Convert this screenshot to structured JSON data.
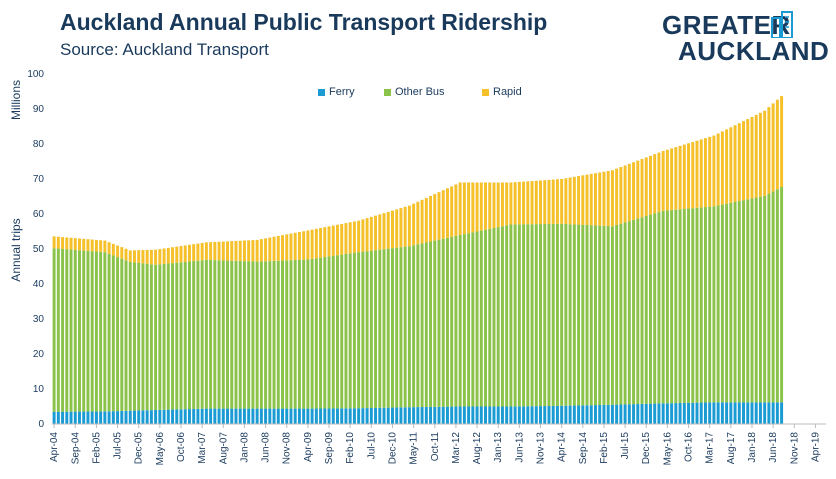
{
  "header": {
    "title": "Auckland Annual Public Transport Ridership",
    "subtitle": "Source: Auckland Transport"
  },
  "logo": {
    "line1": "GREATER",
    "line2": "AUCKLAND"
  },
  "colors": {
    "ferry": "#1a9bd4",
    "other_bus": "#8bc34a",
    "rapid": "#f5c02a",
    "text": "#1a3a5c"
  },
  "chart_data": {
    "type": "bar",
    "stacked": true,
    "title": "Auckland Annual Public Transport Ridership",
    "ylabel_top": "Millions",
    "ylabel": "Annual trips",
    "ylim": [
      0,
      100
    ],
    "yticks": [
      0,
      10,
      20,
      30,
      40,
      50,
      60,
      70,
      80,
      90,
      100
    ],
    "x_start": "Apr-04",
    "x_tick_labels": [
      "Apr-04",
      "Sep-04",
      "Feb-05",
      "Jul-05",
      "Dec-05",
      "May-06",
      "Oct-06",
      "Mar-07",
      "Aug-07",
      "Jan-08",
      "Jun-08",
      "Nov-08",
      "Apr-09",
      "Sep-09",
      "Feb-10",
      "Jul-10",
      "Dec-10",
      "May-11",
      "Oct-11",
      "Mar-12",
      "Aug-12",
      "Jan-13",
      "Jun-13",
      "Nov-13",
      "Apr-14",
      "Sep-14",
      "Feb-15",
      "Jul-15",
      "Dec-15",
      "May-16",
      "Oct-16",
      "Mar-17",
      "Aug-17",
      "Jan-18",
      "Jun-18",
      "Nov-18",
      "Apr-19"
    ],
    "x_axis_end": "Jun-19",
    "legend_position": "top",
    "grid": false,
    "series": [
      {
        "name": "Ferry",
        "anchors": [
          [
            0,
            3.5
          ],
          [
            12,
            3.6
          ],
          [
            24,
            4.0
          ],
          [
            36,
            4.4
          ],
          [
            48,
            4.4
          ],
          [
            60,
            4.4
          ],
          [
            72,
            4.5
          ],
          [
            84,
            4.8
          ],
          [
            96,
            5.0
          ],
          [
            108,
            5.0
          ],
          [
            120,
            5.2
          ],
          [
            132,
            5.5
          ],
          [
            144,
            5.9
          ],
          [
            156,
            6.2
          ],
          [
            168,
            6.2
          ],
          [
            172,
            6.2
          ]
        ]
      },
      {
        "name": "Other Bus",
        "anchors": [
          [
            0,
            46.7
          ],
          [
            12,
            45.5
          ],
          [
            18,
            42.5
          ],
          [
            24,
            41.5
          ],
          [
            36,
            42.5
          ],
          [
            48,
            42.0
          ],
          [
            60,
            42.6
          ],
          [
            72,
            44.6
          ],
          [
            84,
            46.0
          ],
          [
            96,
            49.0
          ],
          [
            108,
            52.0
          ],
          [
            120,
            52.0
          ],
          [
            132,
            51.0
          ],
          [
            144,
            55.0
          ],
          [
            156,
            56.0
          ],
          [
            168,
            59.0
          ],
          [
            172,
            61.5
          ]
        ]
      },
      {
        "name": "Rapid",
        "anchors": [
          [
            0,
            3.4
          ],
          [
            12,
            3.3
          ],
          [
            18,
            3.3
          ],
          [
            24,
            4.3
          ],
          [
            36,
            5.0
          ],
          [
            48,
            6.2
          ],
          [
            60,
            8.3
          ],
          [
            72,
            9.0
          ],
          [
            84,
            11.6
          ],
          [
            96,
            15.0
          ],
          [
            108,
            12.0
          ],
          [
            120,
            12.8
          ],
          [
            132,
            16.0
          ],
          [
            144,
            17.1
          ],
          [
            156,
            20.2
          ],
          [
            168,
            24.3
          ],
          [
            172,
            26.0
          ]
        ]
      }
    ],
    "n_months": 173
  }
}
